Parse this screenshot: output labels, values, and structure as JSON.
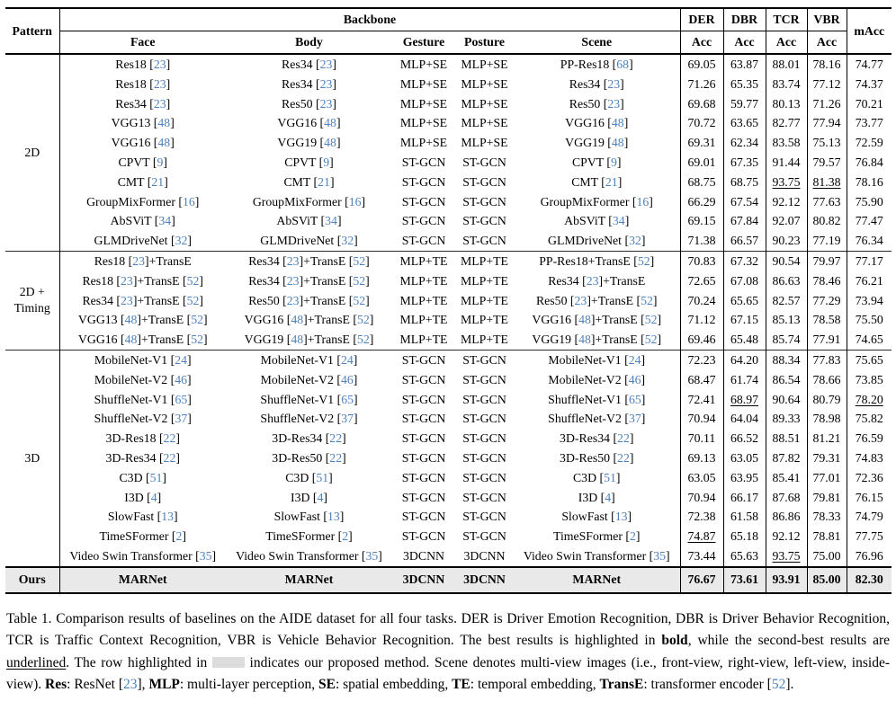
{
  "table": {
    "header": {
      "pattern": "Pattern",
      "backbone": "Backbone",
      "subcols": [
        "Face",
        "Body",
        "Gesture",
        "Posture",
        "Scene"
      ],
      "metrics": [
        "DER",
        "DBR",
        "TCR",
        "VBR"
      ],
      "acc": "Acc",
      "macc": "mAcc"
    },
    "groups": [
      {
        "pattern": "2D",
        "rows": [
          [
            "Res18 [23]",
            "Res34 [23]",
            "MLP+SE",
            "MLP+SE",
            "PP-Res18 [68]",
            "69.05",
            "63.87",
            "88.01",
            "78.16",
            "74.77"
          ],
          [
            "Res18 [23]",
            "Res34 [23]",
            "MLP+SE",
            "MLP+SE",
            "Res34 [23]",
            "71.26",
            "65.35",
            "83.74",
            "77.12",
            "74.37"
          ],
          [
            "Res34 [23]",
            "Res50 [23]",
            "MLP+SE",
            "MLP+SE",
            "Res50 [23]",
            "69.68",
            "59.77",
            "80.13",
            "71.26",
            "70.21"
          ],
          [
            "VGG13 [48]",
            "VGG16 [48]",
            "MLP+SE",
            "MLP+SE",
            "VGG16 [48]",
            "70.72",
            "63.65",
            "82.77",
            "77.94",
            "73.77"
          ],
          [
            "VGG16 [48]",
            "VGG19 [48]",
            "MLP+SE",
            "MLP+SE",
            "VGG19 [48]",
            "69.31",
            "62.34",
            "83.58",
            "75.13",
            "72.59"
          ],
          [
            "CPVT [9]",
            "CPVT [9]",
            "ST-GCN",
            "ST-GCN",
            "CPVT [9]",
            "69.01",
            "67.35",
            "91.44",
            "79.57",
            "76.84"
          ],
          [
            "CMT [21]",
            "CMT [21]",
            "ST-GCN",
            "ST-GCN",
            "CMT [21]",
            "68.75",
            "68.75",
            "_93.75_",
            "_81.38_",
            "78.16"
          ],
          [
            "GroupMixFormer [16]",
            "GroupMixFormer [16]",
            "ST-GCN",
            "ST-GCN",
            "GroupMixFormer [16]",
            "66.29",
            "67.54",
            "92.12",
            "77.63",
            "75.90"
          ],
          [
            "AbSViT [34]",
            "AbSViT [34]",
            "ST-GCN",
            "ST-GCN",
            "AbSViT [34]",
            "69.15",
            "67.84",
            "92.07",
            "80.82",
            "77.47"
          ],
          [
            "GLMDriveNet [32]",
            "GLMDriveNet [32]",
            "ST-GCN",
            "ST-GCN",
            "GLMDriveNet [32]",
            "71.38",
            "66.57",
            "90.23",
            "77.19",
            "76.34"
          ]
        ]
      },
      {
        "pattern": "2D +\nTiming",
        "rows": [
          [
            "Res18 [23]+TransE",
            "Res34 [23]+TransE [52]",
            "MLP+TE",
            "MLP+TE",
            "PP-Res18+TransE [52]",
            "70.83",
            "67.32",
            "90.54",
            "79.97",
            "77.17"
          ],
          [
            "Res18 [23]+TransE [52]",
            "Res34 [23]+TransE [52]",
            "MLP+TE",
            "MLP+TE",
            "Res34 [23]+TransE",
            "72.65",
            "67.08",
            "86.63",
            "78.46",
            "76.21"
          ],
          [
            "Res34 [23]+TransE [52]",
            "Res50 [23]+TransE [52]",
            "MLP+TE",
            "MLP+TE",
            "Res50 [23]+TransE [52]",
            "70.24",
            "65.65",
            "82.57",
            "77.29",
            "73.94"
          ],
          [
            "VGG13 [48]+TransE [52]",
            "VGG16 [48]+TransE [52]",
            "MLP+TE",
            "MLP+TE",
            "VGG16 [48]+TransE [52]",
            "71.12",
            "67.15",
            "85.13",
            "78.58",
            "75.50"
          ],
          [
            "VGG16 [48]+TransE [52]",
            "VGG19 [48]+TransE [52]",
            "MLP+TE",
            "MLP+TE",
            "VGG19 [48]+TransE [52]",
            "69.46",
            "65.48",
            "85.74",
            "77.91",
            "74.65"
          ]
        ]
      },
      {
        "pattern": "3D",
        "rows": [
          [
            "MobileNet-V1 [24]",
            "MobileNet-V1 [24]",
            "ST-GCN",
            "ST-GCN",
            "MobileNet-V1 [24]",
            "72.23",
            "64.20",
            "88.34",
            "77.83",
            "75.65"
          ],
          [
            "MobileNet-V2 [46]",
            "MobileNet-V2 [46]",
            "ST-GCN",
            "ST-GCN",
            "MobileNet-V2 [46]",
            "68.47",
            "61.74",
            "86.54",
            "78.66",
            "73.85"
          ],
          [
            "ShuffleNet-V1 [65]",
            "ShuffleNet-V1 [65]",
            "ST-GCN",
            "ST-GCN",
            "ShuffleNet-V1 [65]",
            "72.41",
            "_68.97_",
            "90.64",
            "80.79",
            "_78.20_"
          ],
          [
            "ShuffleNet-V2 [37]",
            "ShuffleNet-V2 [37]",
            "ST-GCN",
            "ST-GCN",
            "ShuffleNet-V2 [37]",
            "70.94",
            "64.04",
            "89.33",
            "78.98",
            "75.82"
          ],
          [
            "3D-Res18 [22]",
            "3D-Res34 [22]",
            "ST-GCN",
            "ST-GCN",
            "3D-Res34 [22]",
            "70.11",
            "66.52",
            "88.51",
            "81.21",
            "76.59"
          ],
          [
            "3D-Res34 [22]",
            "3D-Res50 [22]",
            "ST-GCN",
            "ST-GCN",
            "3D-Res50 [22]",
            "69.13",
            "63.05",
            "87.82",
            "79.31",
            "74.83"
          ],
          [
            "C3D [51]",
            "C3D [51]",
            "ST-GCN",
            "ST-GCN",
            "C3D [51]",
            "63.05",
            "63.95",
            "85.41",
            "77.01",
            "72.36"
          ],
          [
            "I3D [4]",
            "I3D [4]",
            "ST-GCN",
            "ST-GCN",
            "I3D [4]",
            "70.94",
            "66.17",
            "87.68",
            "79.81",
            "76.15"
          ],
          [
            "SlowFast [13]",
            "SlowFast [13]",
            "ST-GCN",
            "ST-GCN",
            "SlowFast [13]",
            "72.38",
            "61.58",
            "86.86",
            "78.33",
            "74.79"
          ],
          [
            "TimeSFormer [2]",
            "TimeSFormer [2]",
            "ST-GCN",
            "ST-GCN",
            "TimeSFormer [2]",
            "_74.87_",
            "65.18",
            "92.12",
            "78.81",
            "77.75"
          ],
          [
            "Video Swin Transformer [35]",
            "Video Swin Transformer [35]",
            "3DCNN",
            "3DCNN",
            "Video Swin Transformer [35]",
            "73.44",
            "65.63",
            "_93.75_",
            "75.00",
            "76.96"
          ]
        ]
      },
      {
        "pattern": "Ours",
        "ours": true,
        "rows": [
          [
            "MARNet",
            "MARNet",
            "3DCNN",
            "3DCNN",
            "MARNet",
            "76.67",
            "73.61",
            "93.91",
            "85.00",
            "82.30"
          ]
        ]
      }
    ]
  },
  "caption": {
    "segments": [
      {
        "t": "Table 1.  Comparison results of baselines on the AIDE dataset for all four tasks.  DER is Driver Emotion Recognition, DBR is Driver Behavior Recognition, TCR is Traffic Context Recognition, VBR is Vehicle Behavior Recognition. The best results is highlighted in "
      },
      {
        "t": "bold",
        "b": true
      },
      {
        "t": ", while the second-best results are "
      },
      {
        "t": "underlined",
        "u": true
      },
      {
        "t": ". The row highlighted in "
      },
      {
        "swatch": true
      },
      {
        "t": " indicates our proposed method.  Scene denotes multi-view images (i.e., front-view, right-view, left-view, inside-view). "
      },
      {
        "t": "Res",
        "b": true
      },
      {
        "t": ": ResNet [23], "
      },
      {
        "t": "MLP",
        "b": true
      },
      {
        "t": ": multi-layer perception, "
      },
      {
        "t": "SE",
        "b": true
      },
      {
        "t": ": spatial embedding, "
      },
      {
        "t": "TE",
        "b": true
      },
      {
        "t": ": temporal embedding, "
      },
      {
        "t": "TransE",
        "b": true
      },
      {
        "t": ": transformer encoder [52]."
      }
    ]
  },
  "colors": {
    "citation": "#4d82be",
    "highlight_row": "#e9e9e9",
    "swatch": "#dcdcdc"
  }
}
